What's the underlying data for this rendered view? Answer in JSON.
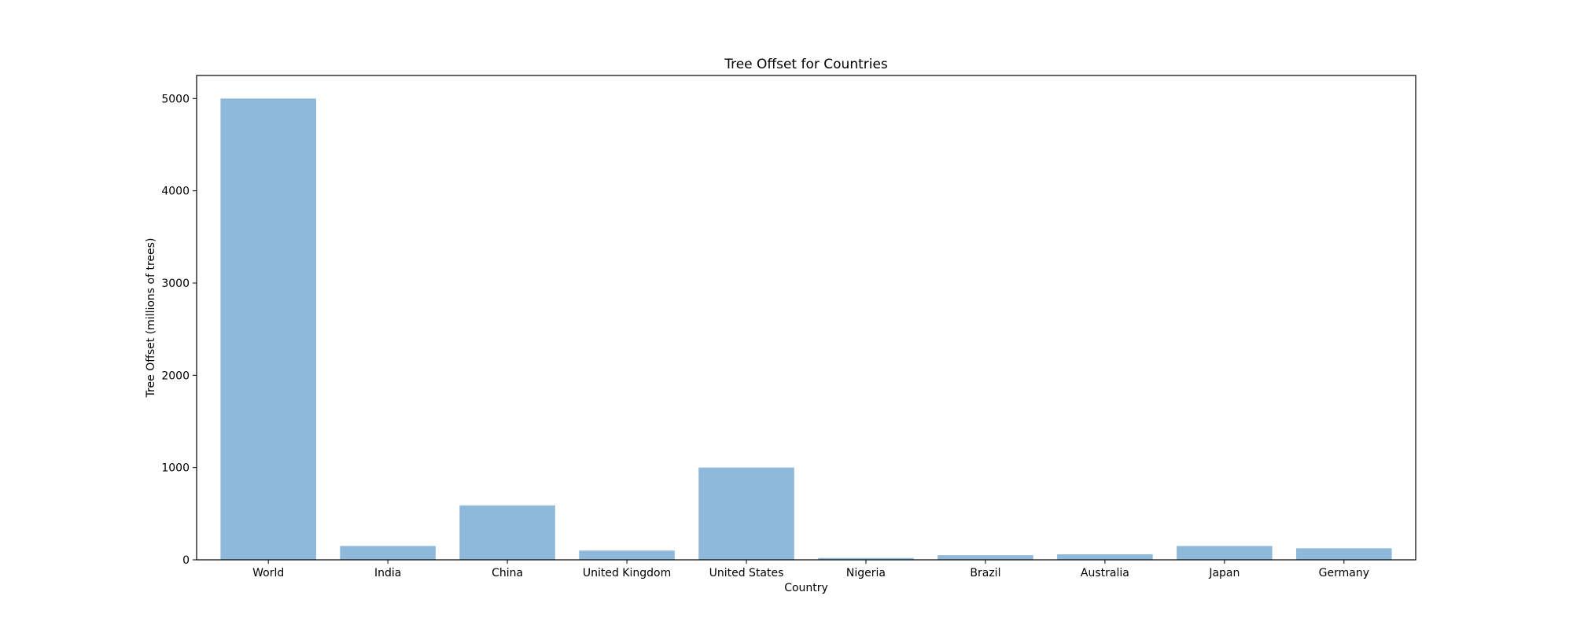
{
  "chart_data": {
    "type": "bar",
    "title": "Tree Offset for Countries",
    "xlabel": "Country",
    "ylabel": "Tree Offset (millions of trees)",
    "categories": [
      "World",
      "India",
      "China",
      "United Kingdom",
      "United States",
      "Nigeria",
      "Brazil",
      "Australia",
      "Japan",
      "Germany"
    ],
    "values": [
      5000,
      150,
      590,
      100,
      1000,
      20,
      50,
      60,
      150,
      125
    ],
    "ylim": [
      0,
      5250
    ],
    "yticks": [
      0,
      1000,
      2000,
      3000,
      4000,
      5000
    ],
    "bar_color": "#8fb9da",
    "grid": false,
    "legend": null
  }
}
